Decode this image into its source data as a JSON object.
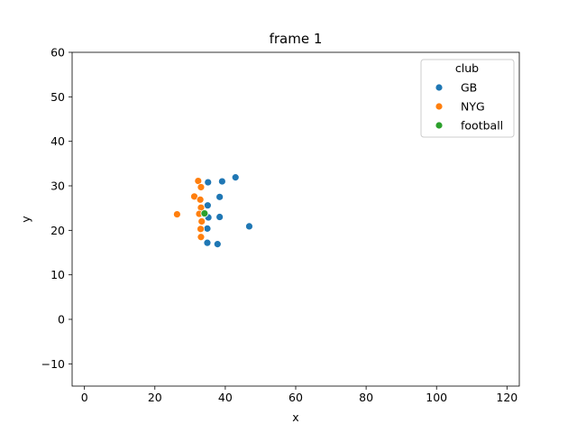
{
  "chart_data": {
    "type": "scatter",
    "title": "frame 1",
    "xlabel": "x",
    "ylabel": "y",
    "xlim": [
      -3.5,
      123.5
    ],
    "ylim": [
      -15,
      60
    ],
    "xticks": [
      0,
      20,
      40,
      60,
      80,
      100,
      120
    ],
    "yticks": [
      -10,
      0,
      10,
      20,
      30,
      40,
      50,
      60
    ],
    "grid": false,
    "legend": {
      "title": "club",
      "placement": "top-right"
    },
    "series": [
      {
        "name": "GB",
        "color": "#1f77b4",
        "points": [
          [
            42.9,
            31.9
          ],
          [
            39.1,
            31.0
          ],
          [
            35.1,
            30.8
          ],
          [
            38.4,
            27.5
          ],
          [
            35.0,
            25.6
          ],
          [
            35.2,
            22.9
          ],
          [
            38.4,
            23.0
          ],
          [
            34.9,
            20.4
          ],
          [
            46.8,
            20.9
          ],
          [
            34.9,
            17.2
          ],
          [
            37.8,
            16.9
          ]
        ]
      },
      {
        "name": "NYG",
        "color": "#ff7f0e",
        "points": [
          [
            32.3,
            31.1
          ],
          [
            33.1,
            29.7
          ],
          [
            31.2,
            27.6
          ],
          [
            32.9,
            26.9
          ],
          [
            33.1,
            25.1
          ],
          [
            26.3,
            23.6
          ],
          [
            32.6,
            23.7
          ],
          [
            33.3,
            22.0
          ],
          [
            33.0,
            20.3
          ],
          [
            33.1,
            18.5
          ]
        ]
      },
      {
        "name": "football",
        "color": "#2ca02c",
        "points": [
          [
            34.1,
            23.8
          ]
        ]
      }
    ]
  }
}
